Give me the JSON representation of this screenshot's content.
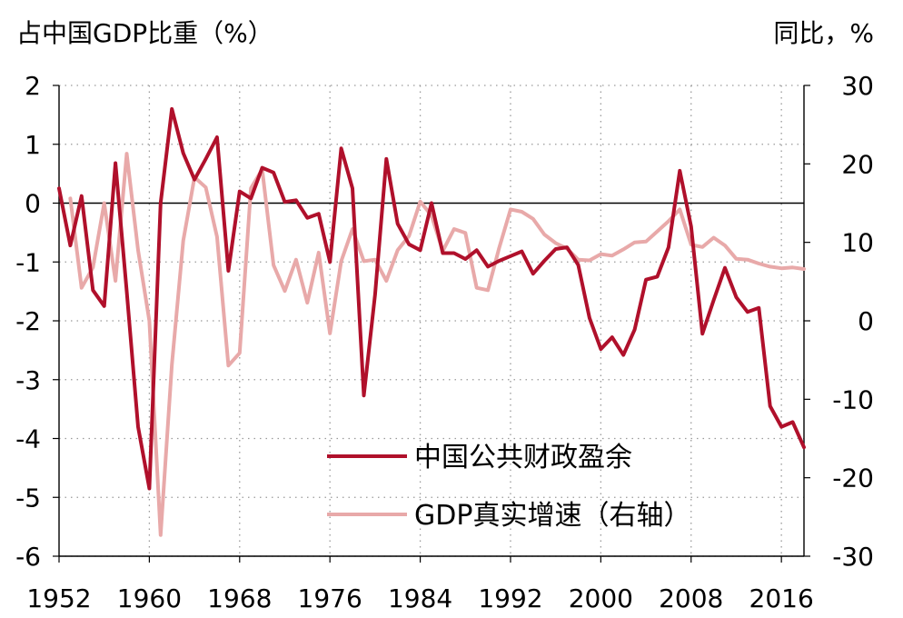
{
  "chart_data": {
    "type": "line",
    "left_axis_title": "占中国GDP比重（%）",
    "right_axis_title": "同比，%",
    "x_ticks": [
      1952,
      1960,
      1968,
      1976,
      1984,
      1992,
      2000,
      2008,
      2016
    ],
    "xlim": [
      1952,
      2018
    ],
    "y_left": {
      "min": -6,
      "max": 2,
      "ticks": [
        2,
        1,
        0,
        -1,
        -2,
        -3,
        -4,
        -5,
        -6
      ]
    },
    "y_right": {
      "min": -30,
      "max": 30,
      "ticks": [
        30,
        20,
        10,
        0,
        -10,
        -20,
        -30
      ]
    },
    "grid": true,
    "legend_position": "bottom-center",
    "series": [
      {
        "name": "中国公共财政盈余",
        "axis": "left",
        "color": "#b0102b",
        "x": [
          1952,
          1953,
          1954,
          1955,
          1956,
          1957,
          1958,
          1959,
          1960,
          1961,
          1962,
          1963,
          1964,
          1965,
          1966,
          1967,
          1968,
          1969,
          1970,
          1971,
          1972,
          1973,
          1974,
          1975,
          1976,
          1977,
          1978,
          1979,
          1980,
          1981,
          1982,
          1983,
          1984,
          1985,
          1986,
          1987,
          1988,
          1989,
          1990,
          1991,
          1992,
          1993,
          1994,
          1995,
          1996,
          1997,
          1998,
          1999,
          2000,
          2001,
          2002,
          2003,
          2004,
          2005,
          2006,
          2007,
          2008,
          2009,
          2010,
          2011,
          2012,
          2013,
          2014,
          2015,
          2016,
          2017,
          2018
        ],
        "y": [
          0.25,
          -0.72,
          0.12,
          -1.48,
          -1.75,
          0.68,
          -1.5,
          -3.8,
          -4.85,
          0.0,
          1.6,
          0.85,
          0.4,
          0.75,
          1.12,
          -1.15,
          0.2,
          0.08,
          0.6,
          0.52,
          0.02,
          0.05,
          -0.25,
          -0.18,
          -1.0,
          0.93,
          0.25,
          -3.27,
          -1.55,
          0.75,
          -0.35,
          -0.7,
          -0.8,
          0.0,
          -0.85,
          -0.85,
          -0.95,
          -0.8,
          -1.08,
          -0.98,
          -0.9,
          -0.82,
          -1.2,
          -0.98,
          -0.78,
          -0.75,
          -1.05,
          -1.95,
          -2.48,
          -2.28,
          -2.58,
          -2.15,
          -1.3,
          -1.25,
          -0.75,
          0.55,
          -0.4,
          -2.22,
          -1.65,
          -1.1,
          -1.6,
          -1.85,
          -1.78,
          -3.45,
          -3.8,
          -3.72,
          -4.15
        ]
      },
      {
        "name": "GDP真实增速（右轴）",
        "axis": "right",
        "color": "#e8a9a9",
        "x": [
          1953,
          1954,
          1955,
          1956,
          1957,
          1958,
          1959,
          1960,
          1961,
          1962,
          1963,
          1964,
          1965,
          1966,
          1967,
          1968,
          1969,
          1970,
          1971,
          1972,
          1973,
          1974,
          1975,
          1976,
          1977,
          1978,
          1979,
          1980,
          1981,
          1982,
          1983,
          1984,
          1985,
          1986,
          1987,
          1988,
          1989,
          1990,
          1991,
          1992,
          1993,
          1994,
          1995,
          1996,
          1997,
          1998,
          1999,
          2000,
          2001,
          2002,
          2003,
          2004,
          2005,
          2006,
          2007,
          2008,
          2009,
          2010,
          2011,
          2012,
          2013,
          2014,
          2015,
          2016,
          2017,
          2018
        ],
        "y": [
          15.6,
          4.2,
          6.8,
          15.0,
          5.1,
          21.3,
          9.0,
          0.0,
          -27.3,
          -5.6,
          10.2,
          18.3,
          17.0,
          10.7,
          -5.7,
          -4.1,
          16.9,
          19.3,
          7.1,
          3.8,
          7.8,
          2.3,
          8.7,
          -1.6,
          7.6,
          11.7,
          7.6,
          7.8,
          5.1,
          9.0,
          10.8,
          15.2,
          13.4,
          8.9,
          11.7,
          11.2,
          4.2,
          3.9,
          9.3,
          14.2,
          13.9,
          13.0,
          11.0,
          9.9,
          9.2,
          7.8,
          7.7,
          8.5,
          8.3,
          9.1,
          10.0,
          10.1,
          11.4,
          12.7,
          14.2,
          9.7,
          9.4,
          10.6,
          9.6,
          7.9,
          7.8,
          7.3,
          6.9,
          6.7,
          6.8,
          6.6
        ]
      }
    ]
  }
}
